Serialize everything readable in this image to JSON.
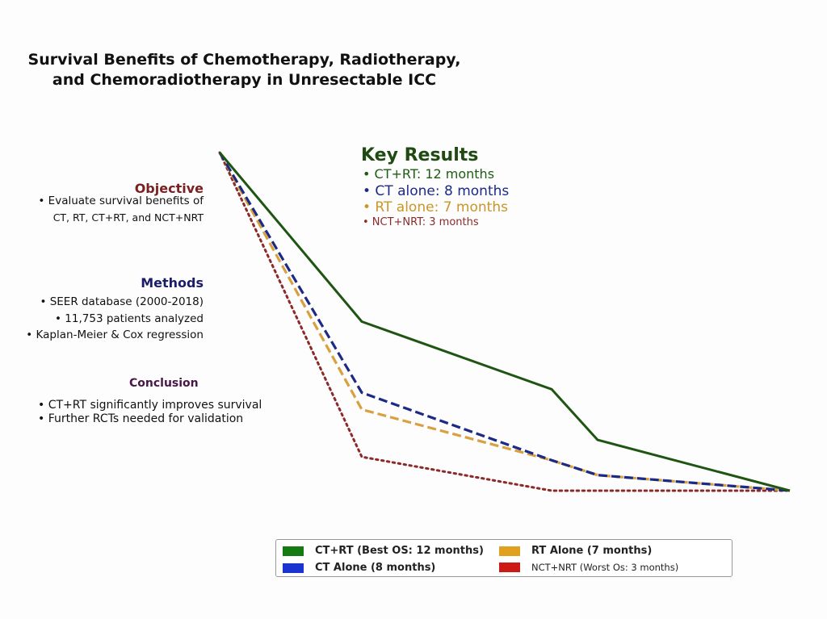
{
  "title": {
    "line1": "Survival Benefits of Chemotherapy, Radiotherapy,",
    "line2": "and Chemoradiotherapy in Unresectable ICC"
  },
  "objective": {
    "heading": "Objective",
    "lines": [
      "• Evaluate survival benefits of",
      "CT, RT, CT+RT, and NCT+NRT"
    ]
  },
  "methods": {
    "heading": "Methods",
    "lines": [
      "• SEER database (2000-2018)",
      "• 11,753 patients analyzed",
      "• Kaplan-Meier & Cox regression"
    ]
  },
  "conclusion": {
    "heading": "Conclusion",
    "lines": [
      "• CT+RT significantly improves survival",
      "• Further RCTs needed for validation"
    ]
  },
  "key_results": {
    "heading": "Key Results",
    "items": [
      {
        "text": "• CT+RT: 12 months",
        "color": "#1f5c12"
      },
      {
        "text": "• CT alone: 8 months",
        "color": "#1c2a86"
      },
      {
        "text": "• RT alone: 7 months",
        "color": "#c99628"
      },
      {
        "text": "• NCT+NRT: 3 months",
        "color": "#8c2a2a"
      }
    ]
  },
  "legend": {
    "items": [
      {
        "label": "CT+RT (Best OS: 12 months)",
        "color": "#157a12"
      },
      {
        "label": "CT Alone (8 months)",
        "color": "#1a34d0"
      },
      {
        "label": "RT Alone (7 months)",
        "color": "#e0a020"
      },
      {
        "label": "NCT+NRT (Worst Os: 3 months)",
        "color": "#cc1a14"
      }
    ]
  },
  "chart_data": {
    "type": "line",
    "title": "",
    "xlabel": "",
    "ylabel": "",
    "grid": false,
    "legend_position": "bottom",
    "x": [
      0,
      1,
      2,
      3,
      4
    ],
    "ylim": [
      0,
      1
    ],
    "series": [
      {
        "name": "CT+RT (Best OS: 12 months)",
        "color": "#1f5512",
        "style": "solid",
        "values": [
          1.0,
          0.5,
          0.3,
          0.15,
          0.0
        ]
      },
      {
        "name": "CT Alone (8 months)",
        "color": "#1c2a86",
        "style": "dashed",
        "values": [
          1.0,
          0.29,
          0.09,
          0.046,
          0.0
        ]
      },
      {
        "name": "RT Alone (7 months)",
        "color": "#d9a040",
        "style": "dashed",
        "values": [
          1.0,
          0.24,
          0.09,
          0.046,
          0.0
        ]
      },
      {
        "name": "NCT+NRT (Worst Os: 3 months)",
        "color": "#8c2a2a",
        "style": "dotted",
        "values": [
          1.0,
          0.1,
          0.0,
          0.0,
          0.0
        ]
      }
    ]
  }
}
